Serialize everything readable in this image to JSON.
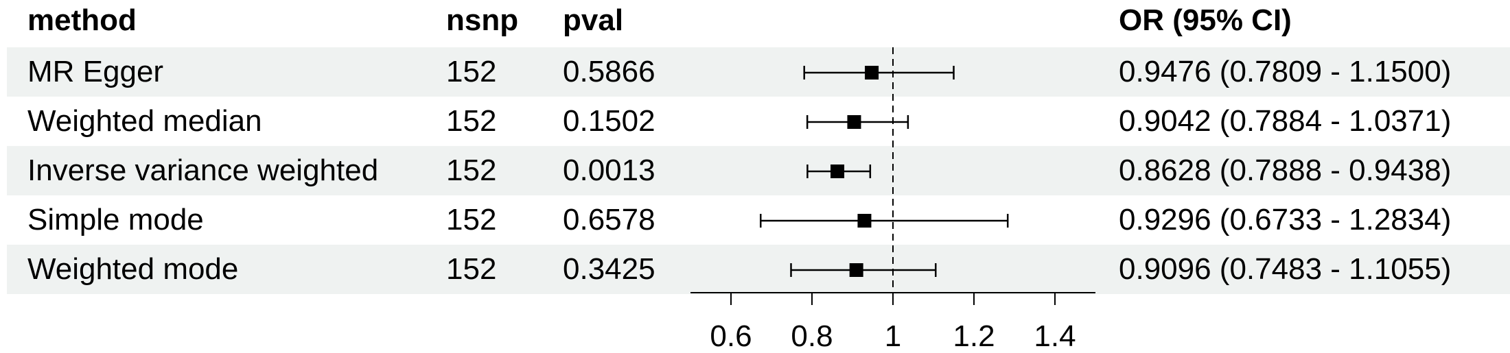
{
  "table": {
    "headers": {
      "method": "method",
      "nsnp": "nsnp",
      "pval": "pval",
      "or_ci": "OR (95% CI)"
    },
    "rows": [
      {
        "method": "MR Egger",
        "nsnp": "152",
        "pval": "0.5866",
        "or_ci": "0.9476 (0.7809 - 1.1500)"
      },
      {
        "method": "Weighted median",
        "nsnp": "152",
        "pval": "0.1502",
        "or_ci": "0.9042 (0.7884 - 1.0371)"
      },
      {
        "method": "Inverse variance weighted",
        "nsnp": "152",
        "pval": "0.0013",
        "or_ci": "0.8628 (0.7888 - 0.9438)"
      },
      {
        "method": "Simple mode",
        "nsnp": "152",
        "pval": "0.6578",
        "or_ci": "0.9296 (0.6733 - 1.2834)"
      },
      {
        "method": "Weighted mode",
        "nsnp": "152",
        "pval": "0.3425",
        "or_ci": "0.9096 (0.7483 - 1.1055)"
      }
    ]
  },
  "chart_data": {
    "type": "scatter",
    "subtype": "forest",
    "categories": [
      "MR Egger",
      "Weighted median",
      "Inverse variance weighted",
      "Simple mode",
      "Weighted mode"
    ],
    "estimate": [
      0.9476,
      0.9042,
      0.8628,
      0.9296,
      0.9096
    ],
    "lower": [
      0.7809,
      0.7884,
      0.7888,
      0.6733,
      0.7483
    ],
    "upper": [
      1.15,
      1.0371,
      0.9438,
      1.2834,
      1.1055
    ],
    "reference_line": 1,
    "xlim": [
      0.5,
      1.5
    ],
    "xticks": [
      0.6,
      0.8,
      1,
      1.2,
      1.4
    ],
    "xtick_labels": [
      "0.6",
      "0.8",
      "1",
      "1.2",
      "1.4"
    ],
    "title": "",
    "xlabel": "",
    "ylabel": "",
    "grid": false,
    "legend": "none"
  },
  "colors": {
    "stripe": "#eff2f1",
    "marker": "#000000",
    "line": "#000000"
  }
}
